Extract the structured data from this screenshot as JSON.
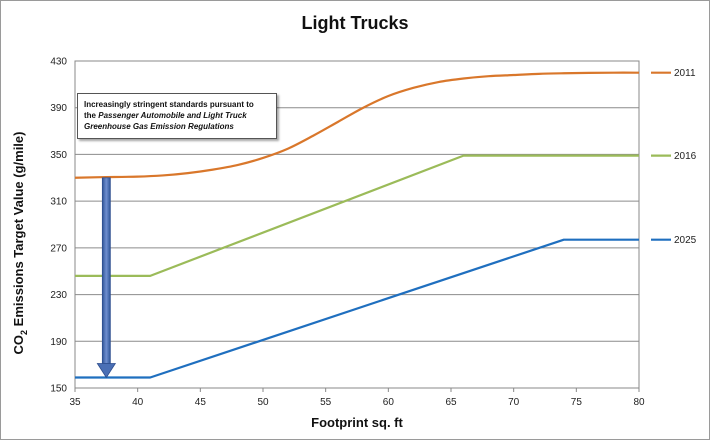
{
  "chart_data": {
    "type": "line",
    "title": "Light Trucks",
    "xlabel": "Footprint sq. ft",
    "ylabel_prefix": "CO",
    "ylabel_sub": "2",
    "ylabel_suffix": " Emissions Target Value (g/mile)",
    "xlim": [
      35,
      80
    ],
    "ylim": [
      150,
      430
    ],
    "xticks": [
      35,
      40,
      45,
      50,
      55,
      60,
      65,
      70,
      75,
      80
    ],
    "yticks": [
      150,
      190,
      230,
      270,
      310,
      350,
      390,
      430
    ],
    "grid": true,
    "series": [
      {
        "name": "2011",
        "color": "#d9772b",
        "x": [
          35,
          37,
          40,
          42,
          44,
          46,
          48,
          50,
          52,
          54,
          56,
          58,
          60,
          62,
          64,
          66,
          68,
          70,
          72,
          74,
          76,
          78,
          80
        ],
        "y": [
          330,
          330.5,
          331,
          332,
          334,
          337,
          341,
          347,
          355,
          366,
          378,
          390,
          400,
          407,
          412,
          415,
          417,
          418,
          419,
          419.5,
          419.8,
          420,
          420
        ]
      },
      {
        "name": "2016",
        "color": "#9bbb59",
        "x": [
          35,
          41,
          66,
          80
        ],
        "y": [
          246,
          246,
          349,
          349
        ]
      },
      {
        "name": "2025",
        "color": "#1f6fbf",
        "x": [
          35,
          41,
          74,
          80
        ],
        "y": [
          159,
          159,
          277,
          277
        ]
      }
    ],
    "annotation": {
      "line1": "Increasingly stringent standards pursuant to",
      "line2_prefix": "the ",
      "line2_italic": "Passenger Automobile and Light Truck",
      "line3_italic": "Greenhouse Gas Emission Regulations"
    },
    "arrow": {
      "x": 37.5,
      "from_y": 330,
      "to_y": 159,
      "color": "#4a6fb5"
    }
  }
}
